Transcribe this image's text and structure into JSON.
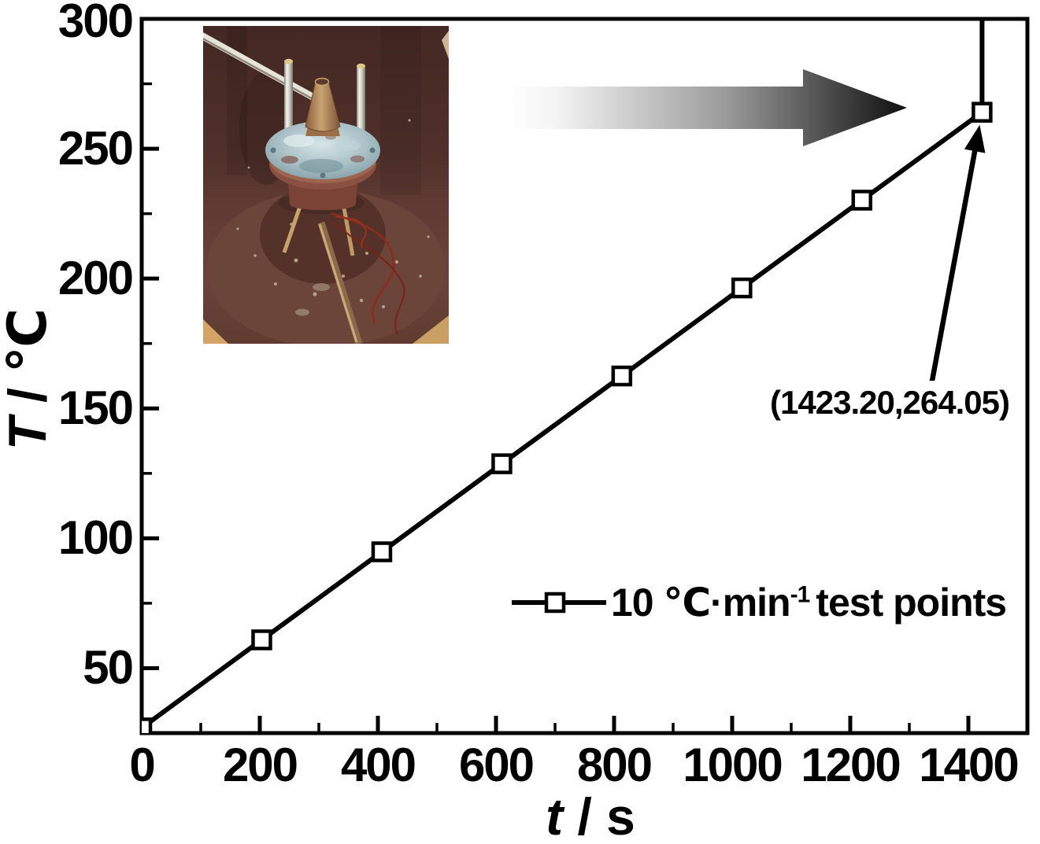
{
  "figure": {
    "background": "#ffffff",
    "axis_color": "#000000",
    "series_color": "#000000"
  },
  "chart_data": {
    "type": "line",
    "title": "",
    "xlabel": "t / s",
    "ylabel": "T / ℃",
    "xlim": [
      0,
      1500
    ],
    "ylim": [
      25,
      300
    ],
    "grid": false,
    "legend_position": "inside lower right",
    "x_major_ticks": [
      0,
      200,
      400,
      600,
      800,
      1000,
      1200,
      1400
    ],
    "x_minor_ticks": [
      100,
      300,
      500,
      700,
      900,
      1100,
      1300
    ],
    "y_major_ticks": [
      50,
      100,
      150,
      200,
      250,
      300
    ],
    "y_minor_ticks": [
      75,
      125,
      175,
      225,
      275
    ],
    "series": [
      {
        "name": "10 ℃·min⁻¹ test points",
        "marker": "open-square",
        "color": "#000000",
        "points": [
          [
            0,
            27.0
          ],
          [
            203.3,
            60.9
          ],
          [
            406.6,
            94.8
          ],
          [
            609.9,
            128.7
          ],
          [
            813.1,
            162.5
          ],
          [
            1016.4,
            196.4
          ],
          [
            1219.7,
            230.2
          ],
          [
            1423.2,
            264.05
          ]
        ]
      }
    ],
    "ignition_spike": {
      "t": 1423.2,
      "T_start": 264.05,
      "extends_to": "top-of-axis"
    },
    "annotation": {
      "text": "(1423.20,264.05)",
      "points_to": {
        "t": 1423.2,
        "T": 264.05
      }
    }
  },
  "axis_titles": {
    "y_italic": "T",
    "y_rest": " / ℃",
    "x_italic": "t",
    "x_rest": " / s"
  },
  "legend": {
    "part1": "10 ℃·min",
    "sup": "-1",
    "part2": "test points"
  },
  "heating_arrow": {
    "direction": "right",
    "gradient": [
      "#ffffff",
      "#0f0f0f"
    ]
  },
  "inset_photo": {
    "content": "top-down photo of cook-off test fixture inside rusted steel barrel: flanged vessel with conical nozzle, thermocouple rods and red signal wires on circular base plate"
  }
}
